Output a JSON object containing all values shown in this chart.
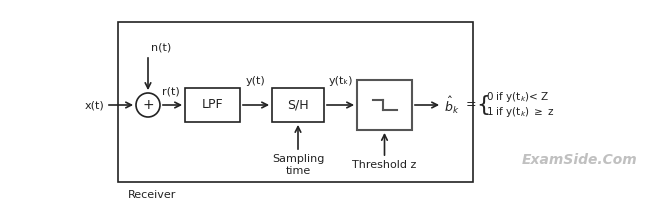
{
  "bg_color": "#ffffff",
  "diagram_color": "#222222",
  "watermark_color": "#c0c0c0",
  "watermark_text": "ExamSide.Com",
  "receiver_label": "Receiver",
  "n_label": "n(t)",
  "r_label": "r(t)",
  "x_label": "x(t)",
  "lpf_label": "LPF",
  "sh_label": "S/H",
  "y_t_label": "y(t)",
  "y_tk_label": "y(tₖ)",
  "sampling_label": "Sampling\ntime",
  "threshold_label": "Threshold z",
  "output_label_hat": "b̂ₖ",
  "output_eq_line1": "1 if y(tₖ) ≥ z",
  "output_eq_line2": "0 if y(tₖ)< Z",
  "figsize": [
    6.72,
    2.12
  ],
  "dpi": 100
}
